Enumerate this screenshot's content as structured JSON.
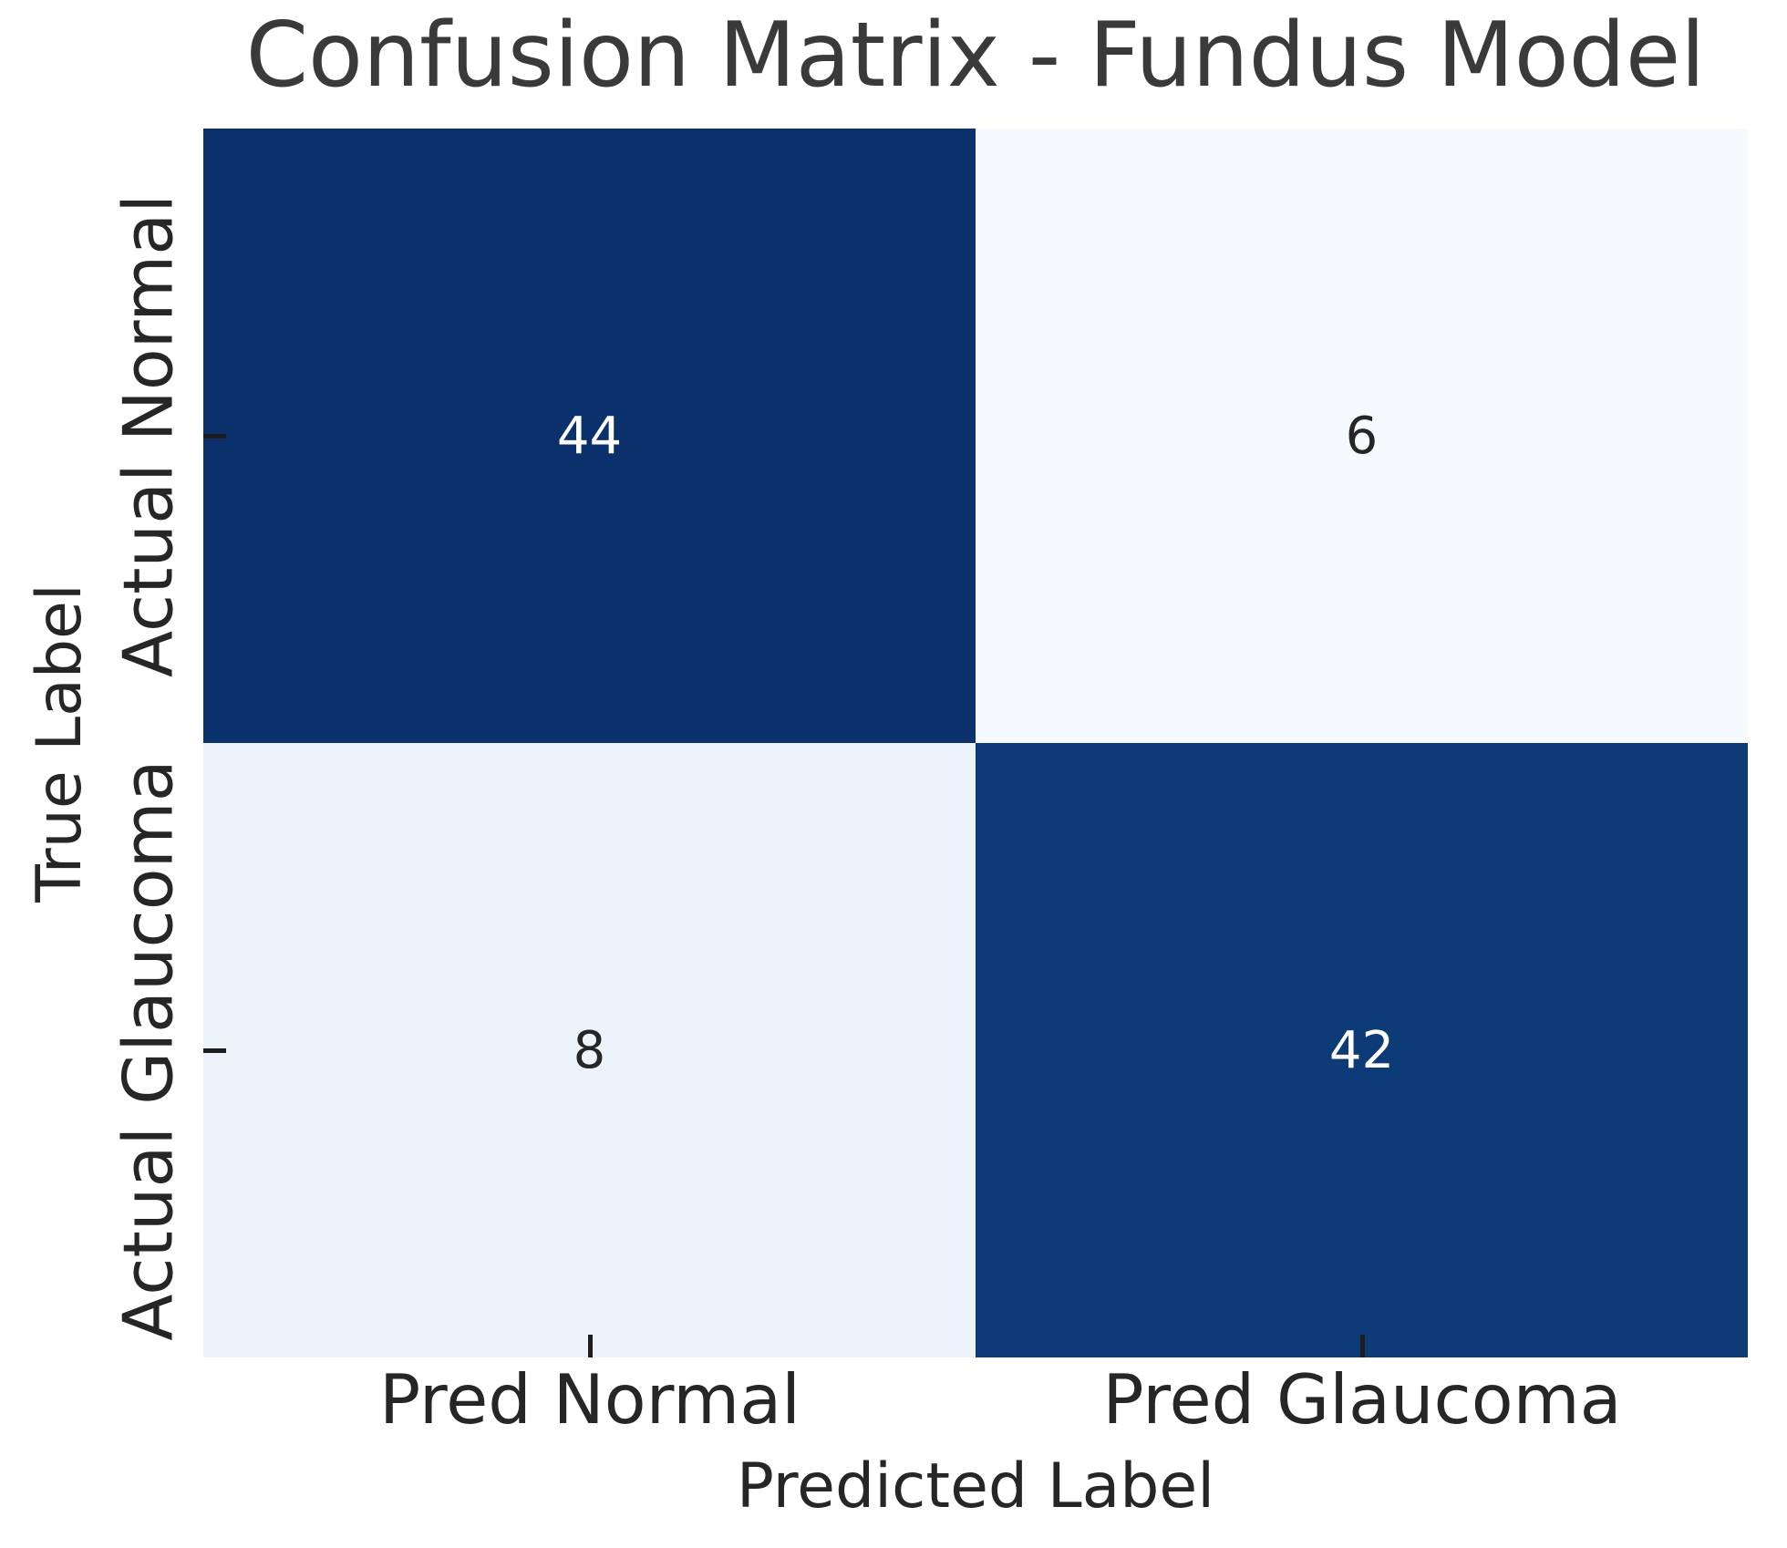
{
  "chart_data": {
    "type": "heatmap",
    "title": "Confusion Matrix - Fundus Model",
    "xlabel": "Predicted Label",
    "ylabel": "True Label",
    "x_tick_labels": [
      "Pred Normal",
      "Pred Glaucoma"
    ],
    "y_tick_labels": [
      "Actual Normal",
      "Actual Glaucoma"
    ],
    "values": [
      [
        44,
        6
      ],
      [
        8,
        42
      ]
    ],
    "colormap": "Blues",
    "vmin": 6,
    "vmax": 44,
    "cell_colors": [
      [
        "#0a316b",
        "#f6fafe"
      ],
      [
        "#ecf3fb",
        "#0d3b77"
      ]
    ],
    "annot_colors": [
      [
        "#ffffff",
        "#262626"
      ],
      [
        "#262626",
        "#ffffff"
      ]
    ],
    "grid": false,
    "legend_position": "none"
  },
  "style": {
    "title_color": "#3a3a3a",
    "label_color": "#262626",
    "tick_color": "#1c1c1c",
    "background": "#ffffff"
  }
}
